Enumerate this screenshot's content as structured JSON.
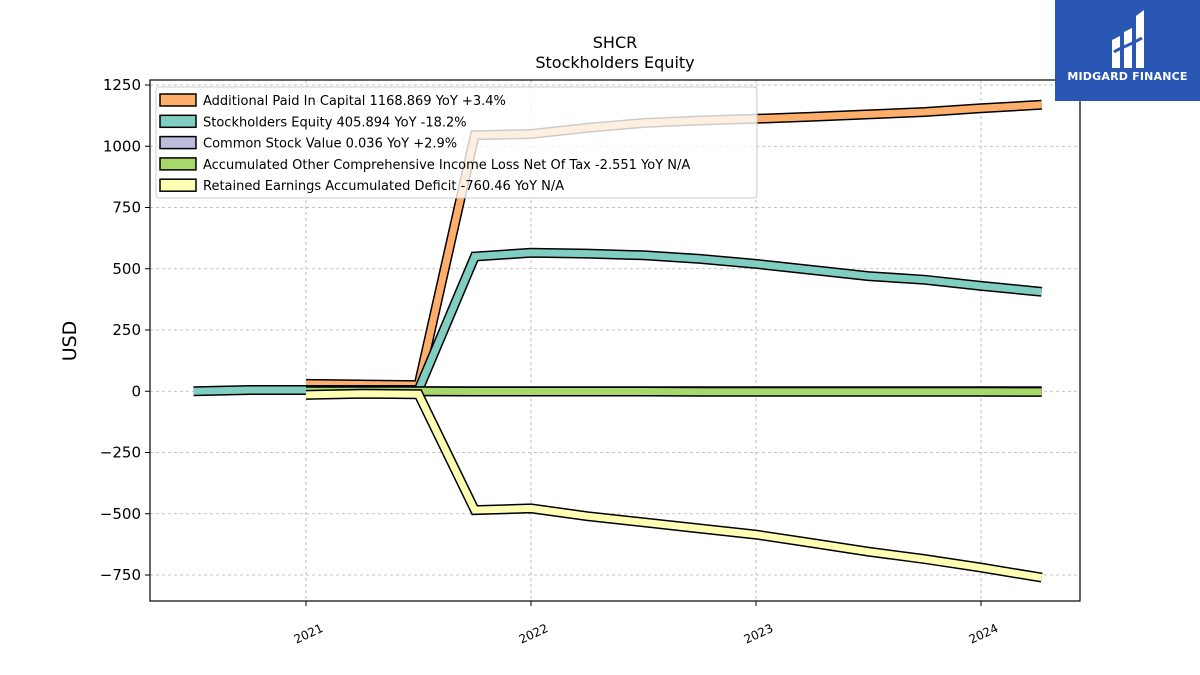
{
  "logo": {
    "text": "MIDGARD FINANCE",
    "bg": "#2a57b3"
  },
  "chart_data": {
    "type": "line",
    "title": "SHCR",
    "subtitle": "Stockholders  Equity",
    "ylabel": "USD",
    "xlabel": "",
    "ylim": [
      -850,
      1250
    ],
    "xlim": [
      2020.31,
      2024.44
    ],
    "yticks": [
      -750,
      -500,
      -250,
      0,
      250,
      500,
      750,
      1000,
      1250
    ],
    "xticks": [
      {
        "value": 2021,
        "label": "2021"
      },
      {
        "value": 2022,
        "label": "2022"
      },
      {
        "value": 2023,
        "label": "2023"
      },
      {
        "value": 2024,
        "label": "2024"
      }
    ],
    "grid": true,
    "legend_position": "top-left",
    "series": [
      {
        "name": "Additional Paid In Capital  1168.869 YoY +3.4%",
        "color": "#fdae6b",
        "x": [
          2021.0,
          2021.5,
          2021.75,
          2022.0,
          2022.25,
          2022.5,
          2022.75,
          2023.0,
          2023.25,
          2023.5,
          2023.75,
          2024.0,
          2024.27
        ],
        "y": [
          30,
          25,
          1045,
          1050,
          1075,
          1095,
          1105,
          1112,
          1120,
          1130,
          1140,
          1155,
          1169
        ]
      },
      {
        "name": "Stockholders Equity  405.894 YoY -18.2%",
        "color": "#80cdc1",
        "x": [
          2020.5,
          2020.75,
          2021.0,
          2021.5,
          2021.75,
          2022.0,
          2022.25,
          2022.5,
          2022.75,
          2023.0,
          2023.25,
          2023.5,
          2023.75,
          2024.0,
          2024.27
        ],
        "y": [
          0,
          5,
          5,
          5,
          550,
          565,
          562,
          555,
          540,
          520,
          495,
          470,
          455,
          430,
          406
        ]
      },
      {
        "name": "Common Stock Value  0.036 YoY +2.9%",
        "color": "#bcbddc",
        "x": [
          2021.0,
          2021.5,
          2021.75,
          2022.0,
          2022.5,
          2023.0,
          2023.5,
          2024.0,
          2024.27
        ],
        "y": [
          0.03,
          0.03,
          0.034,
          0.035,
          0.035,
          0.035,
          0.035,
          0.035,
          0.036
        ]
      },
      {
        "name": "Accumulated Other Comprehensive Income Loss Net Of Tax  -2.551 YoY N/A",
        "color": "#a6d96a",
        "x": [
          2021.0,
          2021.5,
          2021.75,
          2022.0,
          2022.5,
          2022.75,
          2023.0,
          2023.5,
          2024.0,
          2024.27
        ],
        "y": [
          0,
          0,
          -1,
          -1,
          -1,
          -2,
          -2,
          -2,
          -2,
          -2.551
        ]
      },
      {
        "name": "Retained Earnings Accumulated Deficit  -760.46 YoY N/A",
        "color": "#ffffb3",
        "x": [
          2021.0,
          2021.25,
          2021.5,
          2021.75,
          2022.0,
          2022.25,
          2022.5,
          2022.75,
          2023.0,
          2023.25,
          2023.5,
          2023.75,
          2024.0,
          2024.27
        ],
        "y": [
          -15,
          -10,
          -12,
          -485,
          -478,
          -510,
          -535,
          -560,
          -585,
          -620,
          -655,
          -685,
          -720,
          -760.46
        ]
      }
    ]
  }
}
